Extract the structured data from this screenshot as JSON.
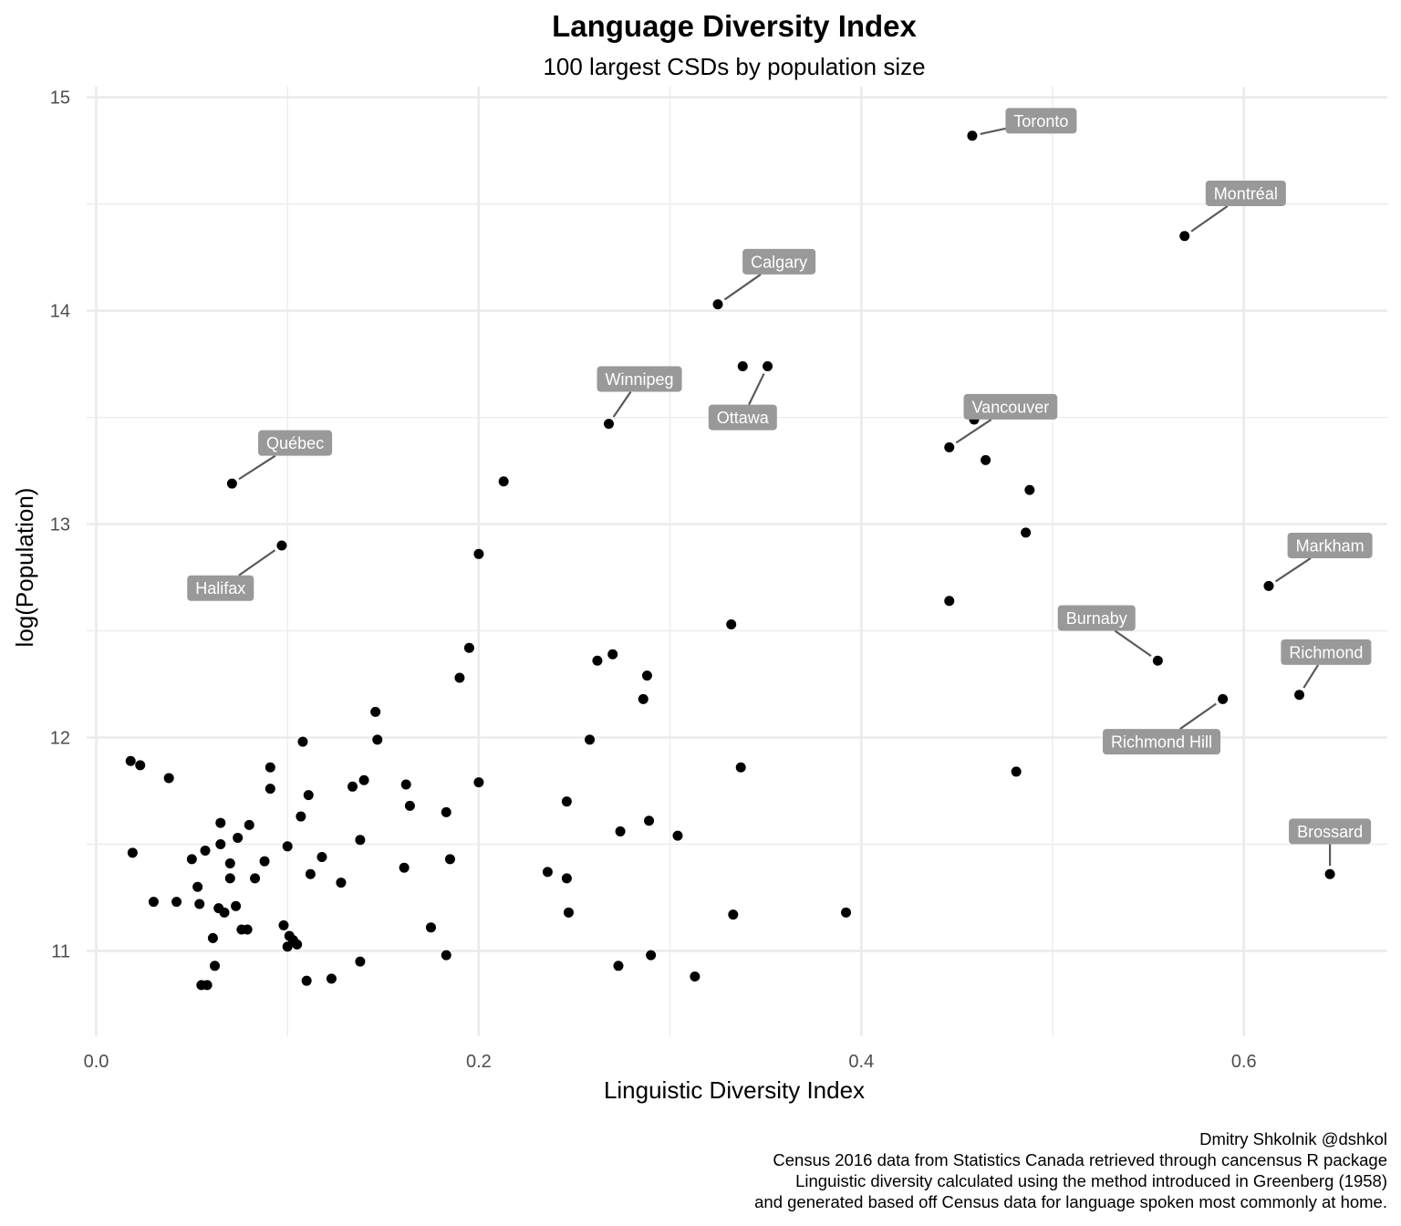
{
  "chart_data": {
    "type": "scatter",
    "title": "Language Diversity Index",
    "subtitle": "100 largest CSDs by population size",
    "xlabel": "Linguistic Diversity Index",
    "ylabel": "log(Population)",
    "xlim": [
      -0.005,
      0.675
    ],
    "ylim": [
      10.6,
      15.05
    ],
    "xticks": [
      0.0,
      0.2,
      0.4,
      0.6
    ],
    "xtick_labels": [
      "0.0",
      "0.2",
      "0.4",
      "0.6"
    ],
    "yticks": [
      11,
      12,
      13,
      14,
      15
    ],
    "ytick_labels": [
      "11",
      "12",
      "13",
      "14",
      "15"
    ],
    "grid": true,
    "caption": [
      "Dmitry Shkolnik @dshkol",
      "Census 2016 data from Statistics Canada retrieved through cancensus R package",
      "Linguistic diversity calculated using the method introduced in Greenberg (1958)",
      "and generated based off Census data for language spoken most commonly at home."
    ],
    "labeled_points": [
      {
        "label": "Toronto",
        "x": 0.458,
        "y": 14.82,
        "lx": 0.494,
        "ly": 14.89
      },
      {
        "label": "Montréal",
        "x": 0.569,
        "y": 14.35,
        "lx": 0.601,
        "ly": 14.55
      },
      {
        "label": "Calgary",
        "x": 0.325,
        "y": 14.03,
        "lx": 0.357,
        "ly": 14.23
      },
      {
        "label": "Winnipeg",
        "x": 0.268,
        "y": 13.47,
        "lx": 0.284,
        "ly": 13.68
      },
      {
        "label": "Ottawa",
        "x": 0.351,
        "y": 13.74,
        "lx": 0.338,
        "ly": 13.5
      },
      {
        "label": "Vancouver",
        "x": 0.446,
        "y": 13.36,
        "lx": 0.478,
        "ly": 13.55
      },
      {
        "label": "Québec",
        "x": 0.071,
        "y": 13.19,
        "lx": 0.104,
        "ly": 13.38
      },
      {
        "label": "Halifax",
        "x": 0.097,
        "y": 12.9,
        "lx": 0.065,
        "ly": 12.7
      },
      {
        "label": "Markham",
        "x": 0.613,
        "y": 12.71,
        "lx": 0.645,
        "ly": 12.9
      },
      {
        "label": "Burnaby",
        "x": 0.555,
        "y": 12.36,
        "lx": 0.523,
        "ly": 12.56
      },
      {
        "label": "Richmond",
        "x": 0.629,
        "y": 12.2,
        "lx": 0.643,
        "ly": 12.4
      },
      {
        "label": "Richmond Hill",
        "x": 0.589,
        "y": 12.18,
        "lx": 0.557,
        "ly": 11.98
      },
      {
        "label": "Brossard",
        "x": 0.645,
        "y": 11.36,
        "lx": 0.645,
        "ly": 11.56
      }
    ],
    "points": [
      [
        0.458,
        14.82
      ],
      [
        0.569,
        14.35
      ],
      [
        0.325,
        14.03
      ],
      [
        0.338,
        13.74
      ],
      [
        0.351,
        13.74
      ],
      [
        0.268,
        13.47
      ],
      [
        0.459,
        13.49
      ],
      [
        0.446,
        13.36
      ],
      [
        0.465,
        13.3
      ],
      [
        0.488,
        13.16
      ],
      [
        0.486,
        12.96
      ],
      [
        0.071,
        13.19
      ],
      [
        0.213,
        13.2
      ],
      [
        0.097,
        12.9
      ],
      [
        0.2,
        12.86
      ],
      [
        0.446,
        12.64
      ],
      [
        0.613,
        12.71
      ],
      [
        0.332,
        12.53
      ],
      [
        0.555,
        12.36
      ],
      [
        0.629,
        12.2
      ],
      [
        0.589,
        12.18
      ],
      [
        0.195,
        12.42
      ],
      [
        0.262,
        12.36
      ],
      [
        0.27,
        12.39
      ],
      [
        0.19,
        12.28
      ],
      [
        0.288,
        12.29
      ],
      [
        0.286,
        12.18
      ],
      [
        0.146,
        12.12
      ],
      [
        0.147,
        11.99
      ],
      [
        0.258,
        11.99
      ],
      [
        0.108,
        11.98
      ],
      [
        0.018,
        11.89
      ],
      [
        0.023,
        11.87
      ],
      [
        0.038,
        11.81
      ],
      [
        0.091,
        11.86
      ],
      [
        0.091,
        11.76
      ],
      [
        0.337,
        11.86
      ],
      [
        0.481,
        11.84
      ],
      [
        0.14,
        11.8
      ],
      [
        0.134,
        11.77
      ],
      [
        0.162,
        11.78
      ],
      [
        0.2,
        11.79
      ],
      [
        0.111,
        11.73
      ],
      [
        0.246,
        11.7
      ],
      [
        0.164,
        11.68
      ],
      [
        0.183,
        11.65
      ],
      [
        0.107,
        11.63
      ],
      [
        0.065,
        11.6
      ],
      [
        0.08,
        11.59
      ],
      [
        0.289,
        11.61
      ],
      [
        0.274,
        11.56
      ],
      [
        0.304,
        11.54
      ],
      [
        0.074,
        11.53
      ],
      [
        0.138,
        11.52
      ],
      [
        0.019,
        11.46
      ],
      [
        0.065,
        11.5
      ],
      [
        0.057,
        11.47
      ],
      [
        0.05,
        11.43
      ],
      [
        0.1,
        11.49
      ],
      [
        0.088,
        11.42
      ],
      [
        0.118,
        11.44
      ],
      [
        0.185,
        11.43
      ],
      [
        0.07,
        11.41
      ],
      [
        0.161,
        11.39
      ],
      [
        0.112,
        11.36
      ],
      [
        0.07,
        11.34
      ],
      [
        0.083,
        11.34
      ],
      [
        0.236,
        11.37
      ],
      [
        0.246,
        11.34
      ],
      [
        0.645,
        11.36
      ],
      [
        0.053,
        11.3
      ],
      [
        0.128,
        11.32
      ],
      [
        0.03,
        11.23
      ],
      [
        0.042,
        11.23
      ],
      [
        0.054,
        11.22
      ],
      [
        0.073,
        11.21
      ],
      [
        0.064,
        11.2
      ],
      [
        0.067,
        11.18
      ],
      [
        0.247,
        11.18
      ],
      [
        0.392,
        11.18
      ],
      [
        0.333,
        11.17
      ],
      [
        0.175,
        11.11
      ],
      [
        0.098,
        11.12
      ],
      [
        0.076,
        11.1
      ],
      [
        0.079,
        11.1
      ],
      [
        0.101,
        11.07
      ],
      [
        0.103,
        11.05
      ],
      [
        0.061,
        11.06
      ],
      [
        0.105,
        11.03
      ],
      [
        0.1,
        11.02
      ],
      [
        0.183,
        10.98
      ],
      [
        0.29,
        10.98
      ],
      [
        0.138,
        10.95
      ],
      [
        0.062,
        10.93
      ],
      [
        0.273,
        10.93
      ],
      [
        0.313,
        10.88
      ],
      [
        0.123,
        10.87
      ],
      [
        0.11,
        10.86
      ],
      [
        0.055,
        10.84
      ],
      [
        0.058,
        10.84
      ]
    ]
  }
}
